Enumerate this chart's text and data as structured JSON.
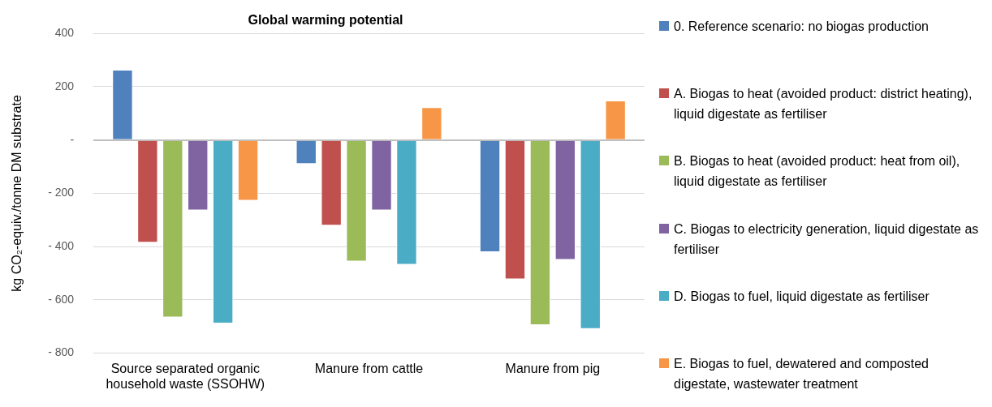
{
  "chart_data": {
    "type": "bar",
    "title": "Global warming potential",
    "ylabel": "kg CO₂-equiv./tonne DM substrate",
    "categories": [
      "Source separated organic household waste (SSOHW)",
      "Manure from cattle",
      "Manure from pig"
    ],
    "series": [
      {
        "name": "0. Reference scenario: no biogas production",
        "color": "#4f81bd",
        "values": [
          264,
          -90,
          -421
        ]
      },
      {
        "name": "A. Biogas to heat (avoided product: district heating), liquid digestate as fertiliser",
        "color": "#c0504d",
        "values": [
          -385,
          -321,
          -523
        ]
      },
      {
        "name": "B. Biogas to heat (avoided product: heat from oil), liquid digestate as fertiliser",
        "color": "#9bbb59",
        "values": [
          -666,
          -456,
          -695
        ]
      },
      {
        "name": "C. Biogas to electricity generation, liquid digestate as fertiliser",
        "color": "#8064a2",
        "values": [
          -264,
          -264,
          -450
        ]
      },
      {
        "name": "D. Biogas to fuel, liquid digestate as fertiliser",
        "color": "#4bacc6",
        "values": [
          -689,
          -468,
          -709
        ]
      },
      {
        "name": "E. Biogas to fuel, dewatered and composted digestate, wastewater treatment",
        "color": "#f79646",
        "values": [
          -228,
          123,
          148
        ]
      }
    ],
    "ylim": [
      -800,
      400
    ],
    "yticks": [
      {
        "value": -800,
        "label": "- 800"
      },
      {
        "value": -600,
        "label": "- 600"
      },
      {
        "value": -400,
        "label": "- 400"
      },
      {
        "value": -200,
        "label": "- 200"
      },
      {
        "value": 0,
        "label": "-"
      },
      200,
      400
    ],
    "grid": "y",
    "legend": "right"
  }
}
